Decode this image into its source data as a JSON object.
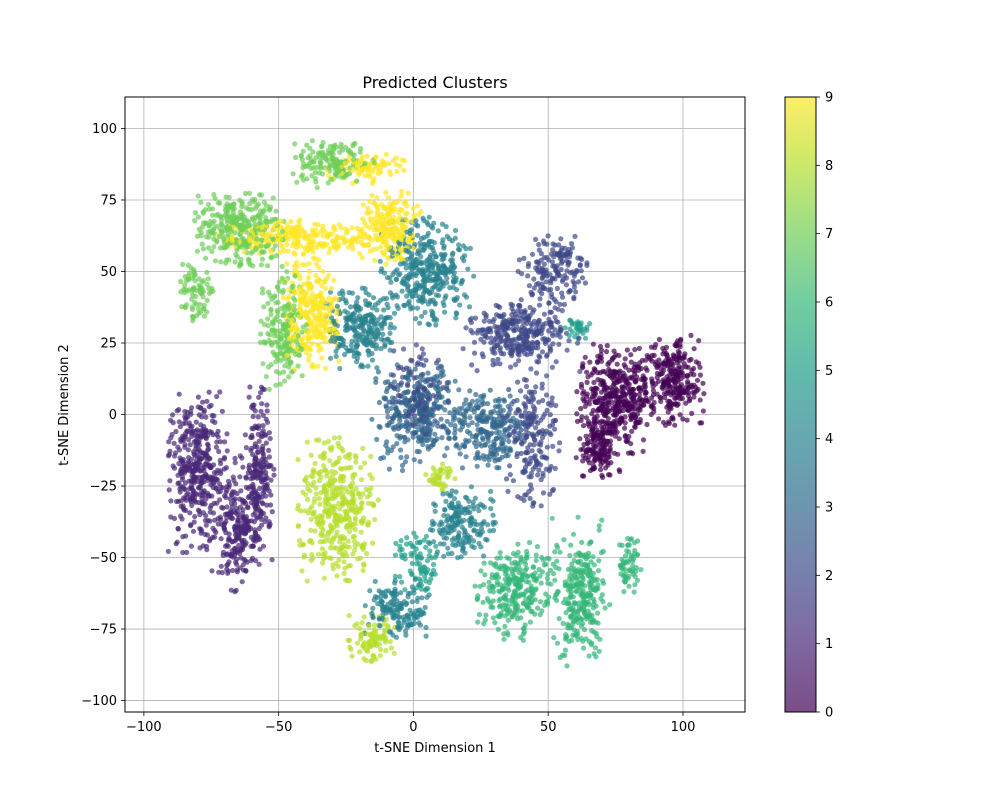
{
  "chart_data": {
    "type": "scatter",
    "title": "Predicted Clusters",
    "xlabel": "t-SNE Dimension 1",
    "ylabel": "t-SNE Dimension 2",
    "xlim": [
      -107,
      123
    ],
    "ylim": [
      -104,
      111
    ],
    "xticks": [
      -100,
      -50,
      0,
      50,
      100
    ],
    "yticks": [
      -100,
      -75,
      -50,
      -25,
      0,
      25,
      50,
      75,
      100
    ],
    "xtick_labels": [
      "−100",
      "−50",
      "0",
      "50",
      "100"
    ],
    "ytick_labels": [
      "−100",
      "−75",
      "−50",
      "−25",
      "0",
      "25",
      "50",
      "75",
      "100"
    ],
    "grid": true,
    "colormap": "viridis",
    "colorbar": {
      "range": [
        0,
        9
      ],
      "ticks": [
        0,
        1,
        2,
        3,
        4,
        5,
        6,
        7,
        8,
        9
      ],
      "tick_labels": [
        "0",
        "1",
        "2",
        "3",
        "4",
        "5",
        "6",
        "7",
        "8",
        "9"
      ]
    },
    "marker_alpha": 0.7,
    "clusters": [
      {
        "label": 0,
        "color": "#440154",
        "regions": [
          {
            "cx": 75,
            "cy": 5,
            "rx": 14,
            "ry": 18,
            "n": 420
          },
          {
            "cx": 96,
            "cy": 12,
            "rx": 11,
            "ry": 15,
            "n": 260
          },
          {
            "cx": 68,
            "cy": -12,
            "rx": 8,
            "ry": 10,
            "n": 120
          }
        ]
      },
      {
        "label": 1,
        "color": "#482878",
        "regions": [
          {
            "cx": -80,
            "cy": -20,
            "rx": 10,
            "ry": 26,
            "n": 380
          },
          {
            "cx": -66,
            "cy": -38,
            "rx": 9,
            "ry": 22,
            "n": 240
          },
          {
            "cx": -58,
            "cy": -20,
            "rx": 6,
            "ry": 28,
            "n": 200
          }
        ]
      },
      {
        "label": 2,
        "color": "#3e4989",
        "regions": [
          {
            "cx": 40,
            "cy": 28,
            "rx": 20,
            "ry": 12,
            "n": 320
          },
          {
            "cx": 52,
            "cy": 50,
            "rx": 12,
            "ry": 12,
            "n": 160
          },
          {
            "cx": 44,
            "cy": -8,
            "rx": 10,
            "ry": 22,
            "n": 200
          },
          {
            "cx": 2,
            "cy": 8,
            "rx": 10,
            "ry": 15,
            "n": 120
          }
        ]
      },
      {
        "label": 3,
        "color": "#31688e",
        "regions": [
          {
            "cx": 2,
            "cy": 0,
            "rx": 16,
            "ry": 18,
            "n": 300
          },
          {
            "cx": 28,
            "cy": -5,
            "rx": 12,
            "ry": 13,
            "n": 220
          }
        ]
      },
      {
        "label": 4,
        "color": "#26828e",
        "regions": [
          {
            "cx": 5,
            "cy": 50,
            "rx": 16,
            "ry": 18,
            "n": 360
          },
          {
            "cx": -20,
            "cy": 30,
            "rx": 12,
            "ry": 13,
            "n": 240
          },
          {
            "cx": 18,
            "cy": -38,
            "rx": 12,
            "ry": 12,
            "n": 180
          },
          {
            "cx": -6,
            "cy": -68,
            "rx": 11,
            "ry": 10,
            "n": 150
          }
        ]
      },
      {
        "label": 5,
        "color": "#1f9e89",
        "regions": [
          {
            "cx": 62,
            "cy": 30,
            "rx": 6,
            "ry": 4,
            "n": 30
          },
          {
            "cx": 2,
            "cy": -52,
            "rx": 8,
            "ry": 10,
            "n": 80
          }
        ]
      },
      {
        "label": 6,
        "color": "#35b779",
        "regions": [
          {
            "cx": 38,
            "cy": -62,
            "rx": 14,
            "ry": 16,
            "n": 280
          },
          {
            "cx": 62,
            "cy": -62,
            "rx": 10,
            "ry": 24,
            "n": 280
          },
          {
            "cx": 80,
            "cy": -52,
            "rx": 4,
            "ry": 10,
            "n": 60
          }
        ]
      },
      {
        "label": 7,
        "color": "#6ece58",
        "regions": [
          {
            "cx": -65,
            "cy": 65,
            "rx": 16,
            "ry": 12,
            "n": 320
          },
          {
            "cx": -48,
            "cy": 30,
            "rx": 8,
            "ry": 20,
            "n": 200
          },
          {
            "cx": -30,
            "cy": 88,
            "rx": 15,
            "ry": 8,
            "n": 150
          },
          {
            "cx": -80,
            "cy": 42,
            "rx": 6,
            "ry": 10,
            "n": 80
          }
        ]
      },
      {
        "label": 8,
        "color": "#b5de2b",
        "regions": [
          {
            "cx": -28,
            "cy": -33,
            "rx": 14,
            "ry": 24,
            "n": 380
          },
          {
            "cx": -16,
            "cy": -78,
            "rx": 9,
            "ry": 8,
            "n": 90
          },
          {
            "cx": 10,
            "cy": -22,
            "rx": 5,
            "ry": 5,
            "n": 40
          }
        ]
      },
      {
        "label": 9,
        "color": "#fde725",
        "regions": [
          {
            "cx": -38,
            "cy": 35,
            "rx": 10,
            "ry": 18,
            "n": 280
          },
          {
            "cx": -40,
            "cy": 62,
            "rx": 30,
            "ry": 6,
            "n": 260
          },
          {
            "cx": -8,
            "cy": 65,
            "rx": 10,
            "ry": 12,
            "n": 200
          },
          {
            "cx": -18,
            "cy": 86,
            "rx": 14,
            "ry": 5,
            "n": 90
          }
        ]
      }
    ]
  }
}
